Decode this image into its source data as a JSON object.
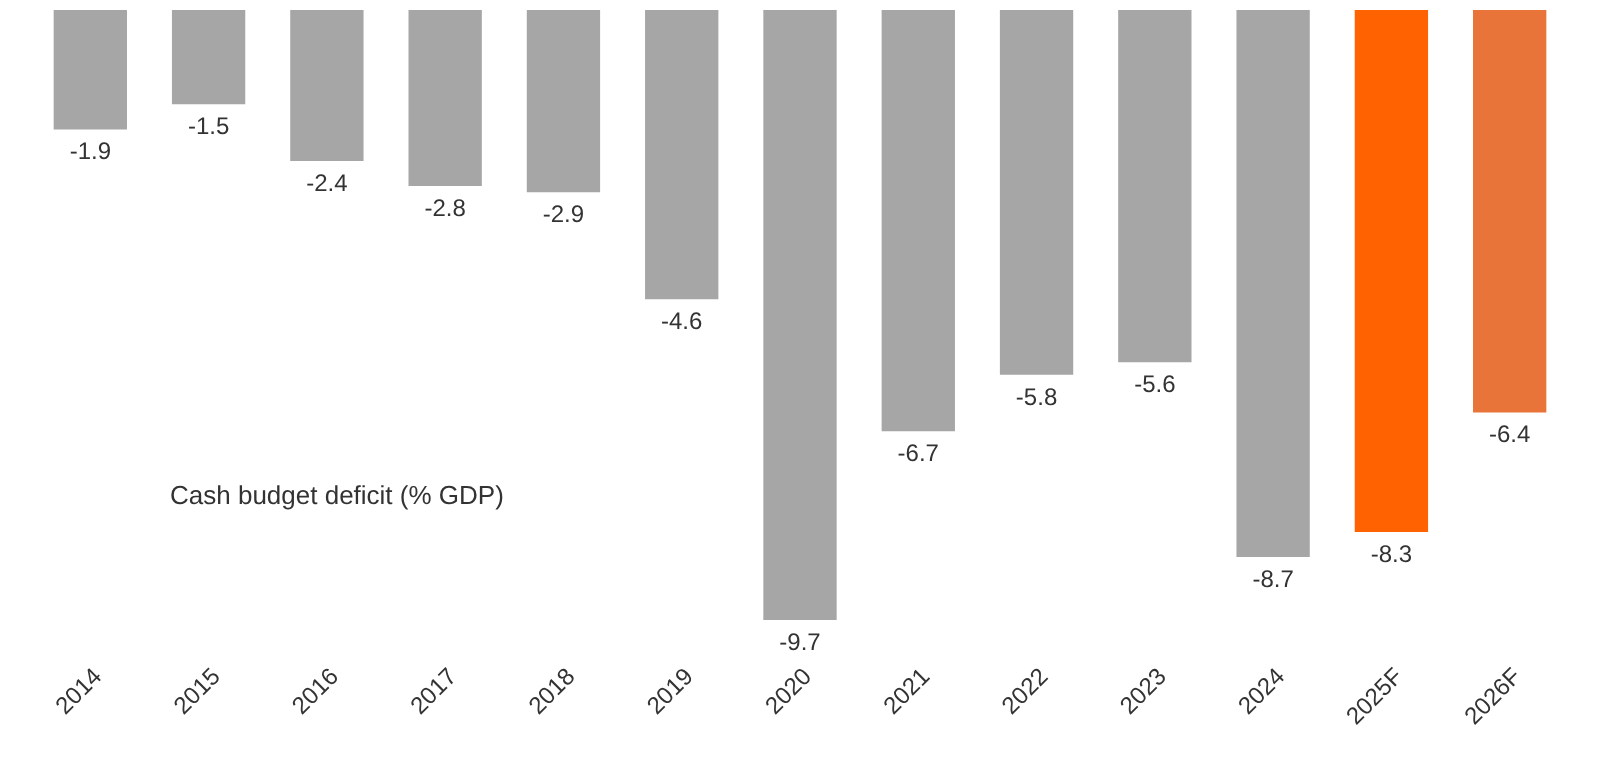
{
  "chart_data": {
    "type": "bar",
    "categories": [
      "2014",
      "2015",
      "2016",
      "2017",
      "2018",
      "2019",
      "2020",
      "2021",
      "2022",
      "2023",
      "2024",
      "2025F",
      "2026F"
    ],
    "values": [
      -1.9,
      -1.5,
      -2.4,
      -2.8,
      -2.9,
      -4.6,
      -9.7,
      -6.7,
      -5.8,
      -5.6,
      -8.7,
      -8.3,
      -6.4
    ],
    "colors": [
      "#a6a6a6",
      "#a6a6a6",
      "#a6a6a6",
      "#a6a6a6",
      "#a6a6a6",
      "#a6a6a6",
      "#a6a6a6",
      "#a6a6a6",
      "#a6a6a6",
      "#a6a6a6",
      "#a6a6a6",
      "#ff6200",
      "#e9743a"
    ],
    "data_labels": true,
    "annotations": [
      "Cash budget deficit (% GDP)"
    ],
    "legend": false
  }
}
